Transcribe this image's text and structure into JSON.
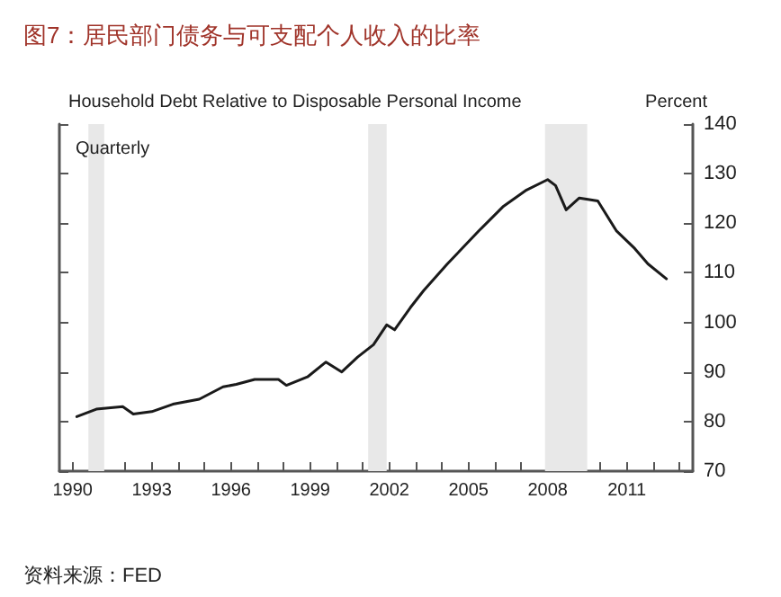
{
  "chart_data": {
    "type": "line",
    "title": "图7：居民部门债务与可支配个人收入的比率",
    "subtitle": "Household Debt Relative to Disposable Personal Income",
    "ylabel": "Percent",
    "annotations": [
      "Quarterly",
      "资料来源：FED"
    ],
    "x": [
      1990.16,
      1990.9,
      1991.9,
      1992.3,
      1993.0,
      1993.8,
      1994.8,
      1995.7,
      1996.2,
      1996.9,
      1997.8,
      1998.1,
      1998.9,
      1999.6,
      2000.2,
      2000.8,
      2001.4,
      2001.9,
      2002.2,
      2002.8,
      2003.3,
      2004.2,
      2005.4,
      2006.3,
      2007.2,
      2008.0,
      2008.3,
      2008.7,
      2009.2,
      2009.9,
      2010.6,
      2011.3,
      2011.8,
      2012.5
    ],
    "series": [
      {
        "color": "#1a1a1a",
        "values": [
          81,
          82.5,
          83,
          81.5,
          82,
          83.5,
          84.5,
          87,
          87.5,
          88.5,
          88.5,
          87.3,
          89,
          92,
          90,
          93,
          95.5,
          99.5,
          98.5,
          103,
          106.4,
          111.8,
          118.5,
          123.3,
          126.7,
          128.8,
          127.6,
          122.7,
          125.1,
          124.5,
          118.5,
          114.9,
          111.8,
          108.8
        ]
      }
    ],
    "xlim": [
      1989.5,
      2013.5
    ],
    "xticks": [
      1990,
      {
        "value": 1991,
        "label": null
      },
      {
        "value": 1992,
        "label": null
      },
      1993,
      {
        "value": 1994,
        "label": null
      },
      {
        "value": 1995,
        "label": null
      },
      1996,
      {
        "value": 1997,
        "label": null
      },
      {
        "value": 1998,
        "label": null
      },
      1999,
      {
        "value": 2000,
        "label": null
      },
      {
        "value": 2001,
        "label": null
      },
      2002,
      {
        "value": 2003,
        "label": null
      },
      {
        "value": 2004,
        "label": null
      },
      2005,
      {
        "value": 2006,
        "label": null
      },
      {
        "value": 2007,
        "label": null
      },
      2008,
      {
        "value": 2009,
        "label": null
      },
      {
        "value": 2010,
        "label": null
      },
      2011,
      {
        "value": 2012,
        "label": null
      },
      {
        "value": 2013,
        "label": null
      }
    ],
    "ylim": [
      70,
      140
    ],
    "yticks": [
      70,
      80,
      90,
      100,
      110,
      120,
      130,
      140
    ],
    "bands": [
      {
        "axis": "x",
        "from": 1990.6,
        "to": 1991.2,
        "color": "#e8e8e8"
      },
      {
        "axis": "x",
        "from": 2001.2,
        "to": 2001.9,
        "color": "#e8e8e8"
      },
      {
        "axis": "x",
        "from": 2007.9,
        "to": 2009.5,
        "color": "#e8e8e8"
      }
    ],
    "marker": "none",
    "line_style": "solid"
  }
}
